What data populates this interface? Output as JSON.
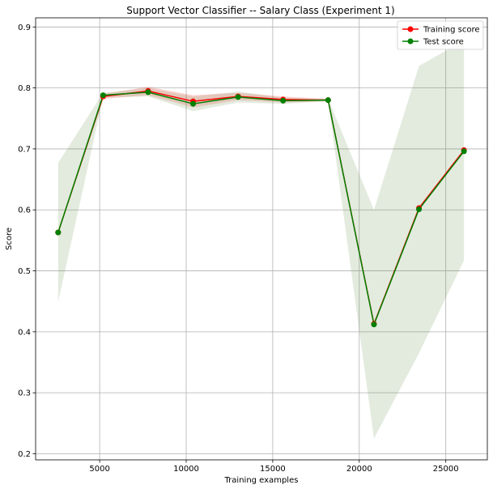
{
  "chart_data": {
    "type": "line",
    "title": "Support Vector Classifier -- Salary Class (Experiment 1)",
    "xlabel": "Training examples",
    "ylabel": "Score",
    "xlim": [
      1300,
      27400
    ],
    "ylim": [
      0.19,
      0.915
    ],
    "xticks": [
      5000,
      10000,
      15000,
      20000,
      25000
    ],
    "xtick_labels": [
      "5000",
      "10000",
      "15000",
      "20000",
      "25000"
    ],
    "yticks": [
      0.2,
      0.3,
      0.4,
      0.5,
      0.6,
      0.7,
      0.8,
      0.9
    ],
    "ytick_labels": [
      "0.2",
      "0.3",
      "0.4",
      "0.5",
      "0.6",
      "0.7",
      "0.8",
      "0.9"
    ],
    "grid": true,
    "legend_position": "top-right",
    "x": [
      2600,
      5200,
      7800,
      10400,
      13000,
      15600,
      18200,
      20850,
      23450,
      26050
    ],
    "series": [
      {
        "name": "Training score",
        "color": "#ff0000",
        "values": [
          0.563,
          0.786,
          0.795,
          0.778,
          0.786,
          0.781,
          0.78,
          0.413,
          0.603,
          0.698
        ],
        "band_lower": [
          0.563,
          0.782,
          0.788,
          0.768,
          0.78,
          0.776,
          0.778,
          0.413,
          0.603,
          0.698
        ],
        "band_upper": [
          0.563,
          0.79,
          0.802,
          0.788,
          0.792,
          0.786,
          0.782,
          0.413,
          0.603,
          0.698
        ],
        "band_color": "#ff0000"
      },
      {
        "name": "Test score",
        "color": "#008000",
        "values": [
          0.563,
          0.788,
          0.793,
          0.774,
          0.785,
          0.779,
          0.78,
          0.412,
          0.601,
          0.696
        ],
        "band_lower": [
          0.449,
          0.784,
          0.786,
          0.762,
          0.776,
          0.774,
          0.778,
          0.225,
          0.365,
          0.517
        ],
        "band_upper": [
          0.677,
          0.792,
          0.8,
          0.786,
          0.794,
          0.784,
          0.782,
          0.6,
          0.836,
          0.878
        ],
        "band_color": "#5a8a3a"
      }
    ]
  }
}
